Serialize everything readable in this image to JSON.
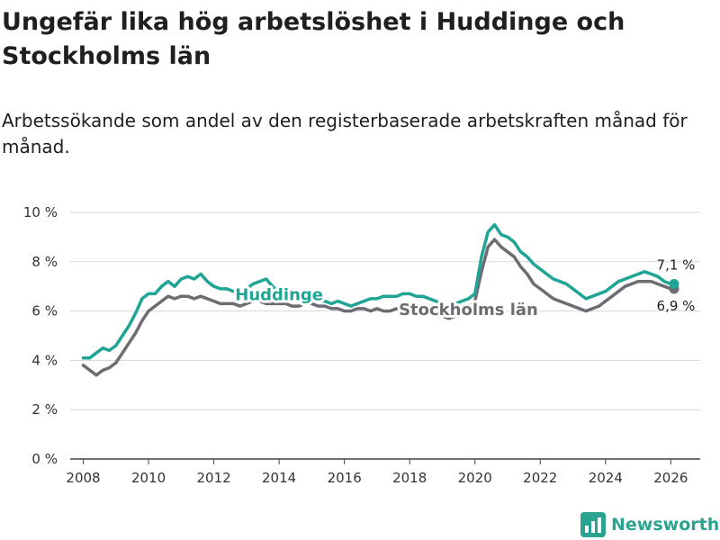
{
  "title": "Ungefär lika hög arbetslöshet i Huddinge och Stockholms län",
  "subtitle": "Arbetssökande som andel av den registerbaserade arbetskraften månad för månad.",
  "brand": {
    "name": "Newsworthy",
    "icon": "bar-chart-logo-icon"
  },
  "chart_data": {
    "type": "line",
    "xlim": [
      2007.6,
      2026.9
    ],
    "ylim": [
      0,
      10
    ],
    "y_ticks": [
      0,
      2,
      4,
      6,
      8,
      10
    ],
    "y_tick_labels": [
      "0 %",
      "2 %",
      "4 %",
      "6 %",
      "8 %",
      "10 %"
    ],
    "x_ticks": [
      2008,
      2010,
      2012,
      2014,
      2016,
      2018,
      2020,
      2022,
      2024,
      2026
    ],
    "x_tick_labels": [
      "2008",
      "2010",
      "2012",
      "2014",
      "2016",
      "2018",
      "2020",
      "2022",
      "2024",
      "2026"
    ],
    "grid": true,
    "series": [
      {
        "name": "Huddinge",
        "color": "#1fa595",
        "end_label": "7,1 %",
        "points": [
          [
            2008.0,
            4.1
          ],
          [
            2008.2,
            4.1
          ],
          [
            2008.4,
            4.3
          ],
          [
            2008.6,
            4.5
          ],
          [
            2008.8,
            4.4
          ],
          [
            2009.0,
            4.6
          ],
          [
            2009.2,
            5.0
          ],
          [
            2009.4,
            5.4
          ],
          [
            2009.6,
            5.9
          ],
          [
            2009.8,
            6.5
          ],
          [
            2010.0,
            6.7
          ],
          [
            2010.2,
            6.7
          ],
          [
            2010.4,
            7.0
          ],
          [
            2010.6,
            7.2
          ],
          [
            2010.8,
            7.0
          ],
          [
            2011.0,
            7.3
          ],
          [
            2011.2,
            7.4
          ],
          [
            2011.4,
            7.3
          ],
          [
            2011.6,
            7.5
          ],
          [
            2011.8,
            7.2
          ],
          [
            2012.0,
            7.0
          ],
          [
            2012.2,
            6.9
          ],
          [
            2012.4,
            6.9
          ],
          [
            2012.6,
            6.8
          ],
          [
            2012.8,
            6.8
          ],
          [
            2013.0,
            6.9
          ],
          [
            2013.2,
            7.1
          ],
          [
            2013.4,
            7.2
          ],
          [
            2013.6,
            7.3
          ],
          [
            2013.8,
            7.0
          ],
          [
            2014.0,
            6.7
          ],
          [
            2014.2,
            6.6
          ],
          [
            2014.4,
            6.4
          ],
          [
            2014.6,
            6.5
          ],
          [
            2014.8,
            6.6
          ],
          [
            2015.0,
            6.5
          ],
          [
            2015.2,
            6.4
          ],
          [
            2015.4,
            6.4
          ],
          [
            2015.6,
            6.3
          ],
          [
            2015.8,
            6.4
          ],
          [
            2016.0,
            6.3
          ],
          [
            2016.2,
            6.2
          ],
          [
            2016.4,
            6.3
          ],
          [
            2016.6,
            6.4
          ],
          [
            2016.8,
            6.5
          ],
          [
            2017.0,
            6.5
          ],
          [
            2017.2,
            6.6
          ],
          [
            2017.4,
            6.6
          ],
          [
            2017.6,
            6.6
          ],
          [
            2017.8,
            6.7
          ],
          [
            2018.0,
            6.7
          ],
          [
            2018.2,
            6.6
          ],
          [
            2018.4,
            6.6
          ],
          [
            2018.6,
            6.5
          ],
          [
            2018.8,
            6.4
          ],
          [
            2019.0,
            6.3
          ],
          [
            2019.2,
            6.2
          ],
          [
            2019.4,
            6.3
          ],
          [
            2019.6,
            6.4
          ],
          [
            2019.8,
            6.5
          ],
          [
            2020.0,
            6.7
          ],
          [
            2020.2,
            8.2
          ],
          [
            2020.4,
            9.2
          ],
          [
            2020.6,
            9.5
          ],
          [
            2020.8,
            9.1
          ],
          [
            2021.0,
            9.0
          ],
          [
            2021.2,
            8.8
          ],
          [
            2021.4,
            8.4
          ],
          [
            2021.6,
            8.2
          ],
          [
            2021.8,
            7.9
          ],
          [
            2022.0,
            7.7
          ],
          [
            2022.2,
            7.5
          ],
          [
            2022.4,
            7.3
          ],
          [
            2022.6,
            7.2
          ],
          [
            2022.8,
            7.1
          ],
          [
            2023.0,
            6.9
          ],
          [
            2023.2,
            6.7
          ],
          [
            2023.4,
            6.5
          ],
          [
            2023.6,
            6.6
          ],
          [
            2023.8,
            6.7
          ],
          [
            2024.0,
            6.8
          ],
          [
            2024.2,
            7.0
          ],
          [
            2024.4,
            7.2
          ],
          [
            2024.6,
            7.3
          ],
          [
            2024.8,
            7.4
          ],
          [
            2025.0,
            7.5
          ],
          [
            2025.2,
            7.6
          ],
          [
            2025.4,
            7.5
          ],
          [
            2025.6,
            7.4
          ],
          [
            2025.8,
            7.2
          ],
          [
            2026.0,
            7.1
          ],
          [
            2026.1,
            7.1
          ]
        ]
      },
      {
        "name": "Stockholms län",
        "color": "#6f6b72",
        "end_label": "6,9 %",
        "points": [
          [
            2008.0,
            3.8
          ],
          [
            2008.2,
            3.6
          ],
          [
            2008.4,
            3.4
          ],
          [
            2008.6,
            3.6
          ],
          [
            2008.8,
            3.7
          ],
          [
            2009.0,
            3.9
          ],
          [
            2009.2,
            4.3
          ],
          [
            2009.4,
            4.7
          ],
          [
            2009.6,
            5.1
          ],
          [
            2009.8,
            5.6
          ],
          [
            2010.0,
            6.0
          ],
          [
            2010.2,
            6.2
          ],
          [
            2010.4,
            6.4
          ],
          [
            2010.6,
            6.6
          ],
          [
            2010.8,
            6.5
          ],
          [
            2011.0,
            6.6
          ],
          [
            2011.2,
            6.6
          ],
          [
            2011.4,
            6.5
          ],
          [
            2011.6,
            6.6
          ],
          [
            2011.8,
            6.5
          ],
          [
            2012.0,
            6.4
          ],
          [
            2012.2,
            6.3
          ],
          [
            2012.4,
            6.3
          ],
          [
            2012.6,
            6.3
          ],
          [
            2012.8,
            6.2
          ],
          [
            2013.0,
            6.3
          ],
          [
            2013.2,
            6.4
          ],
          [
            2013.4,
            6.4
          ],
          [
            2013.6,
            6.3
          ],
          [
            2013.8,
            6.3
          ],
          [
            2014.0,
            6.3
          ],
          [
            2014.2,
            6.3
          ],
          [
            2014.4,
            6.2
          ],
          [
            2014.6,
            6.2
          ],
          [
            2014.8,
            6.3
          ],
          [
            2015.0,
            6.3
          ],
          [
            2015.2,
            6.2
          ],
          [
            2015.4,
            6.2
          ],
          [
            2015.6,
            6.1
          ],
          [
            2015.8,
            6.1
          ],
          [
            2016.0,
            6.0
          ],
          [
            2016.2,
            6.0
          ],
          [
            2016.4,
            6.1
          ],
          [
            2016.6,
            6.1
          ],
          [
            2016.8,
            6.0
          ],
          [
            2017.0,
            6.1
          ],
          [
            2017.2,
            6.0
          ],
          [
            2017.4,
            6.0
          ],
          [
            2017.6,
            6.1
          ],
          [
            2017.8,
            6.1
          ],
          [
            2018.0,
            6.1
          ],
          [
            2018.2,
            6.0
          ],
          [
            2018.4,
            5.9
          ],
          [
            2018.6,
            5.9
          ],
          [
            2018.8,
            5.8
          ],
          [
            2019.0,
            5.8
          ],
          [
            2019.2,
            5.7
          ],
          [
            2019.4,
            5.8
          ],
          [
            2019.6,
            5.9
          ],
          [
            2019.8,
            6.1
          ],
          [
            2020.0,
            6.4
          ],
          [
            2020.2,
            7.6
          ],
          [
            2020.4,
            8.6
          ],
          [
            2020.6,
            8.9
          ],
          [
            2020.8,
            8.6
          ],
          [
            2021.0,
            8.4
          ],
          [
            2021.2,
            8.2
          ],
          [
            2021.4,
            7.8
          ],
          [
            2021.6,
            7.5
          ],
          [
            2021.8,
            7.1
          ],
          [
            2022.0,
            6.9
          ],
          [
            2022.2,
            6.7
          ],
          [
            2022.4,
            6.5
          ],
          [
            2022.6,
            6.4
          ],
          [
            2022.8,
            6.3
          ],
          [
            2023.0,
            6.2
          ],
          [
            2023.2,
            6.1
          ],
          [
            2023.4,
            6.0
          ],
          [
            2023.6,
            6.1
          ],
          [
            2023.8,
            6.2
          ],
          [
            2024.0,
            6.4
          ],
          [
            2024.2,
            6.6
          ],
          [
            2024.4,
            6.8
          ],
          [
            2024.6,
            7.0
          ],
          [
            2024.8,
            7.1
          ],
          [
            2025.0,
            7.2
          ],
          [
            2025.2,
            7.2
          ],
          [
            2025.4,
            7.2
          ],
          [
            2025.6,
            7.1
          ],
          [
            2025.8,
            7.0
          ],
          [
            2026.0,
            6.9
          ],
          [
            2026.1,
            6.9
          ]
        ]
      }
    ],
    "annotations": [
      {
        "text": "Huddinge",
        "series": "Huddinge",
        "x": 2014.0
      },
      {
        "text": "Stockholms län",
        "series": "Stockholms län",
        "x": 2019.8
      }
    ]
  }
}
